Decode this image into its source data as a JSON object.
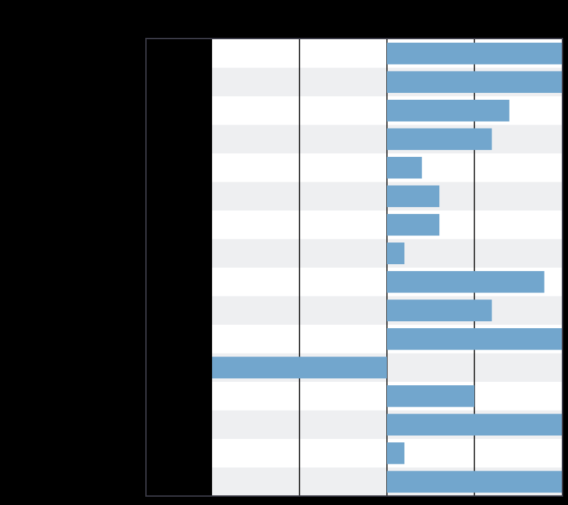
{
  "chart_data": {
    "type": "bar",
    "orientation": "horizontal",
    "title": "",
    "xlabel": "",
    "ylabel": "",
    "categories": [
      "",
      "",
      "",
      "",
      "",
      "",
      "",
      "",
      "",
      "",
      "",
      "",
      "",
      "",
      "",
      ""
    ],
    "values": [
      2.0,
      2.0,
      1.4,
      1.2,
      0.4,
      0.6,
      0.6,
      0.2,
      1.8,
      1.2,
      2.0,
      -2.0,
      1.0,
      2.0,
      0.2,
      2.0
    ],
    "xlim": [
      -2.0,
      2.0
    ],
    "gridlines_x": [
      -1.0,
      0.0,
      1.0
    ],
    "grid": true,
    "legend": "none",
    "colors": {
      "background": "#000000",
      "plot_black_band": "#000000",
      "row_light": "#FFFFFF",
      "row_alt": "#EEEFF1",
      "bar": "#72A6CD",
      "gridline": "#000000",
      "frame": "#3A3A46"
    }
  }
}
